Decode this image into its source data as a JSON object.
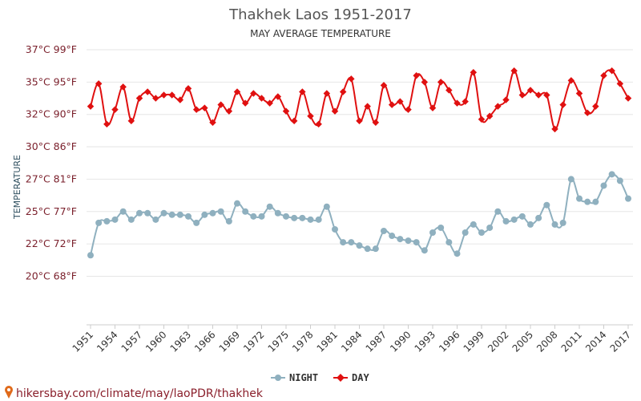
{
  "source_text": "hikersbay.com/climate/may/laoPDR/thakhek",
  "chart_data": {
    "type": "line",
    "title": "Thakhek Laos 1951-2017",
    "subtitle": "MAY AVERAGE TEMPERATURE",
    "ylabel": "TEMPERATURE",
    "xlabel": "",
    "x_range": [
      1951,
      2017
    ],
    "ylim": [
      20,
      37
    ],
    "y_ticks": [
      {
        "value": 37,
        "label": "37°C 99°F"
      },
      {
        "value": 35,
        "label": "35°C 95°F"
      },
      {
        "value": 33,
        "label": "32°C 90°F"
      },
      {
        "value": 31,
        "label": "30°C 86°F"
      },
      {
        "value": 29,
        "label": "27°C 81°F"
      },
      {
        "value": 27,
        "label": "25°C 77°F"
      },
      {
        "value": 25,
        "label": "22°C 72°F"
      },
      {
        "value": 23,
        "label": "20°C 68°F"
      }
    ],
    "x_tick_labels": [
      "1951",
      "1954",
      "1957",
      "1960",
      "1963",
      "1966",
      "1969",
      "1972",
      "1975",
      "1978",
      "1981",
      "1984",
      "1987",
      "1990",
      "1993",
      "1996",
      "1999",
      "2002",
      "2005",
      "2008",
      "2011",
      "2014",
      "2017"
    ],
    "grid": true,
    "legend_position": "bottom-center",
    "x": [
      1951,
      1952,
      1953,
      1954,
      1955,
      1956,
      1957,
      1958,
      1959,
      1960,
      1961,
      1962,
      1963,
      1964,
      1965,
      1966,
      1967,
      1968,
      1969,
      1970,
      1971,
      1972,
      1973,
      1974,
      1975,
      1976,
      1977,
      1978,
      1979,
      1980,
      1981,
      1982,
      1983,
      1984,
      1985,
      1986,
      1987,
      1988,
      1989,
      1990,
      1991,
      1992,
      1993,
      1994,
      1995,
      1996,
      1997,
      1998,
      1999,
      2000,
      2001,
      2002,
      2003,
      2004,
      2005,
      2006,
      2007,
      2008,
      2009,
      2010,
      2011,
      2012,
      2013,
      2014,
      2015,
      2016,
      2017
    ],
    "series": [
      {
        "name": "NIGHT",
        "color": "#8fb0bf",
        "values": [
          24.3,
          26.3,
          26.4,
          26.5,
          27.0,
          26.5,
          26.9,
          26.9,
          26.5,
          26.9,
          26.8,
          26.8,
          26.7,
          26.3,
          26.8,
          26.9,
          27.0,
          26.4,
          27.5,
          27.0,
          26.7,
          26.7,
          27.3,
          26.9,
          26.7,
          26.6,
          26.6,
          26.5,
          26.5,
          27.3,
          25.9,
          25.1,
          25.1,
          24.9,
          24.7,
          24.7,
          25.8,
          25.5,
          25.3,
          25.2,
          25.1,
          24.6,
          25.7,
          26.0,
          25.1,
          24.4,
          25.7,
          26.2,
          25.7,
          26.0,
          27.0,
          26.4,
          26.5,
          26.7,
          26.2,
          26.6,
          27.4,
          26.2,
          26.3,
          29.0,
          27.8,
          27.6,
          27.6,
          28.6,
          29.3,
          28.9,
          27.8
        ]
      },
      {
        "name": "DAY",
        "color": "#e01010",
        "values": [
          33.5,
          34.9,
          32.4,
          33.3,
          34.7,
          32.6,
          34.0,
          34.4,
          34.0,
          34.2,
          34.2,
          33.9,
          34.6,
          33.3,
          33.4,
          32.5,
          33.6,
          33.2,
          34.4,
          33.7,
          34.3,
          34.0,
          33.7,
          34.1,
          33.2,
          32.6,
          34.4,
          32.9,
          32.4,
          34.3,
          33.2,
          34.4,
          35.2,
          32.6,
          33.5,
          32.5,
          34.8,
          33.6,
          33.8,
          33.3,
          35.4,
          35.0,
          33.4,
          35.0,
          34.5,
          33.7,
          33.8,
          35.6,
          32.7,
          32.9,
          33.5,
          33.9,
          35.7,
          34.2,
          34.5,
          34.2,
          34.2,
          32.1,
          33.6,
          35.1,
          34.3,
          33.1,
          33.5,
          35.4,
          35.7,
          34.9,
          34.0
        ]
      }
    ]
  }
}
